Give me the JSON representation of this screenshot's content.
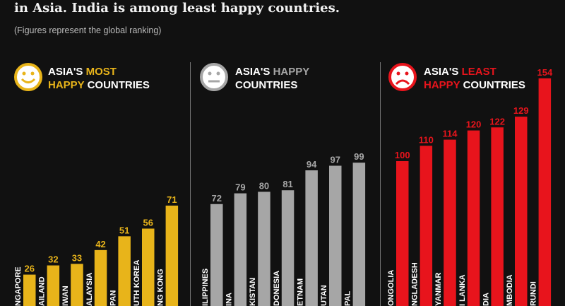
{
  "title": "in Asia. India is among least happy countries.",
  "subtitle": "(Figures represent the global ranking)",
  "colors": {
    "most": "#e8b41a",
    "happy": "#a6a6a6",
    "least": "#e8141c",
    "background": "#111111"
  },
  "groups": [
    {
      "heading_line1_a": "ASIA'S ",
      "heading_line1_b": "MOST",
      "heading_line2_a": "HAPPY",
      "heading_line2_b": " COUNTRIES",
      "icon": "smiley-face-icon"
    },
    {
      "heading_line1_a": "ASIA'S ",
      "heading_line1_b": "HAPPY",
      "heading_line2_a": "",
      "heading_line2_b": "COUNTRIES",
      "icon": "neutral-face-icon"
    },
    {
      "heading_line1_a": "ASIA'S ",
      "heading_line1_b": "LEAST",
      "heading_line2_a": "HAPPY",
      "heading_line2_b": " COUNTRIES",
      "icon": "sad-face-icon"
    }
  ],
  "chart_data": {
    "type": "bar",
    "title": "",
    "series": [
      {
        "group": "most",
        "categories": [
          "NGAPORE",
          "AILAND",
          "IWAN",
          "ALAYSIA",
          "PAN",
          "UTH KOREA",
          "NG KONG"
        ],
        "values": [
          26,
          32,
          33,
          42,
          51,
          56,
          71
        ]
      },
      {
        "group": "happy",
        "categories": [
          "ILIPPINES",
          "INA",
          "KISTAN",
          "DONESIA",
          "ETNAM",
          "UTAN",
          "PAL"
        ],
        "values": [
          72,
          79,
          80,
          81,
          94,
          97,
          99
        ]
      },
      {
        "group": "least",
        "categories": [
          "ONGOLIA",
          "NGLADESH",
          "YANMAR",
          "I LANKA",
          "DIA",
          "MBODIA",
          "RUNDI"
        ],
        "values": [
          100,
          110,
          114,
          120,
          122,
          129,
          154
        ]
      }
    ]
  }
}
